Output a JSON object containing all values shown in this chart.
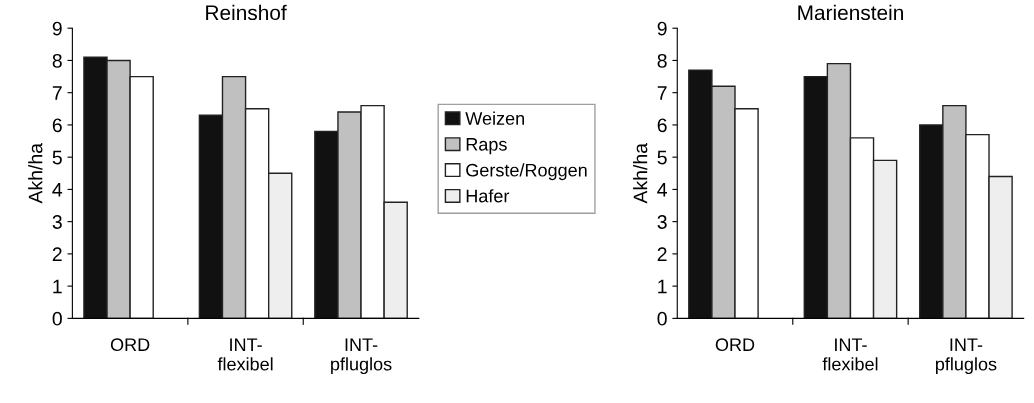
{
  "chart_data": [
    {
      "type": "bar",
      "title": "Reinshof",
      "ylabel": "Akh/ha",
      "categories": [
        "ORD",
        "INT-\nflexibel",
        "INT-\npfluglos"
      ],
      "ylim": [
        0,
        9
      ],
      "yticks": [
        0,
        1,
        2,
        3,
        4,
        5,
        6,
        7,
        8,
        9
      ],
      "grid": false,
      "legend": "right",
      "series": [
        {
          "name": "Weizen",
          "color": "#111111",
          "values": [
            8.1,
            6.3,
            5.8
          ]
        },
        {
          "name": "Raps",
          "color": "#c0c0c0",
          "values": [
            8.0,
            7.5,
            6.4
          ]
        },
        {
          "name": "Gerste/Roggen",
          "color": "#ffffff",
          "values": [
            7.5,
            6.5,
            6.6
          ]
        },
        {
          "name": "Hafer",
          "color": "#eeeeee",
          "values": [
            null,
            4.5,
            3.6
          ]
        }
      ]
    },
    {
      "type": "bar",
      "title": "Marienstein",
      "ylabel": "Akh/ha",
      "categories": [
        "ORD",
        "INT-\nflexibel",
        "INT-\npfluglos"
      ],
      "ylim": [
        0,
        9
      ],
      "yticks": [
        0,
        1,
        2,
        3,
        4,
        5,
        6,
        7,
        8,
        9
      ],
      "grid": false,
      "series": [
        {
          "color": "#111111",
          "values": [
            7.7,
            7.5,
            6.0
          ]
        },
        {
          "color": "#c0c0c0",
          "values": [
            7.2,
            7.9,
            6.6
          ]
        },
        {
          "color": "#ffffff",
          "values": [
            6.5,
            5.6,
            5.7
          ]
        },
        {
          "color": "#eeeeee",
          "values": [
            null,
            4.9,
            4.4
          ]
        }
      ]
    }
  ]
}
